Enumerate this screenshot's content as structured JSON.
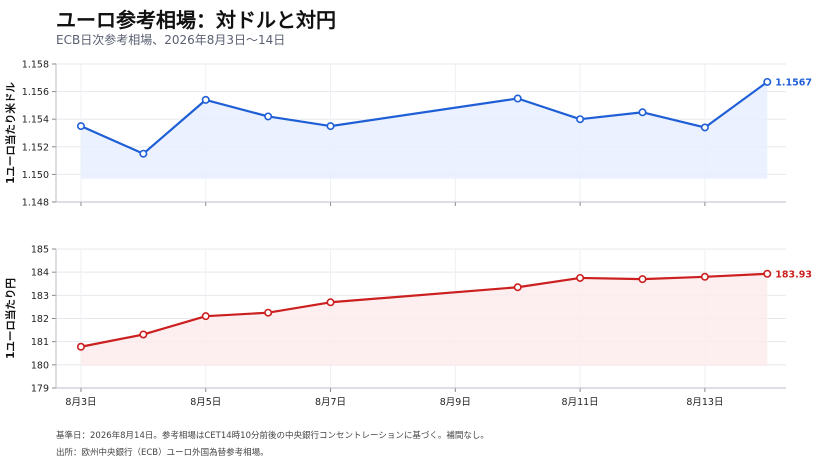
{
  "header": {
    "title": "ユーロ参考相場：対ドルと対円",
    "subtitle": "ECB日次参考相場、2026年8月3日〜14日"
  },
  "footnotes": {
    "basis": "基準日：2026年8月14日。参考相場はCET14時10分前後の中央銀行コンセントレーションに基づく。補間なし。",
    "source": "出所：欧州中央銀行（ECB）ユーロ外国為替参考相場。"
  },
  "chart_data": [
    {
      "type": "line",
      "ylabel": "1ユーロ当たり米ドル",
      "color": "#1f5fd6",
      "fill": "#e8efff",
      "ylim": [
        1.148,
        1.158
      ],
      "yticks": [
        "1.148",
        "1.150",
        "1.152",
        "1.154",
        "1.156",
        "1.158"
      ],
      "x": [
        3,
        4,
        5,
        6,
        7,
        10,
        11,
        12,
        13,
        14
      ],
      "values": [
        1.1535,
        1.1515,
        1.1554,
        1.1542,
        1.1535,
        1.1555,
        1.154,
        1.1545,
        1.1534,
        1.1567
      ],
      "end_label": "1.1567",
      "grid": true
    },
    {
      "type": "line",
      "ylabel": "1ユーロ当たり円",
      "color": "#cc1f1f",
      "fill": "#fdecec",
      "ylim": [
        179,
        185
      ],
      "yticks": [
        "179",
        "180",
        "181",
        "182",
        "183",
        "184",
        "185"
      ],
      "x": [
        3,
        4,
        5,
        6,
        7,
        10,
        11,
        12,
        13,
        14
      ],
      "values": [
        180.78,
        181.31,
        182.1,
        182.25,
        182.7,
        183.35,
        183.75,
        183.7,
        183.8,
        183.93
      ],
      "end_label": "183.93",
      "grid": true
    }
  ],
  "x_axis": {
    "ticks": [
      {
        "x": 3,
        "label": "8月3日"
      },
      {
        "x": 5,
        "label": "8月5日"
      },
      {
        "x": 7,
        "label": "8月7日"
      },
      {
        "x": 9,
        "label": "8月9日"
      },
      {
        "x": 11,
        "label": "8月11日"
      },
      {
        "x": 13,
        "label": "8月13日"
      }
    ],
    "range": [
      2.6,
      14.3
    ]
  }
}
